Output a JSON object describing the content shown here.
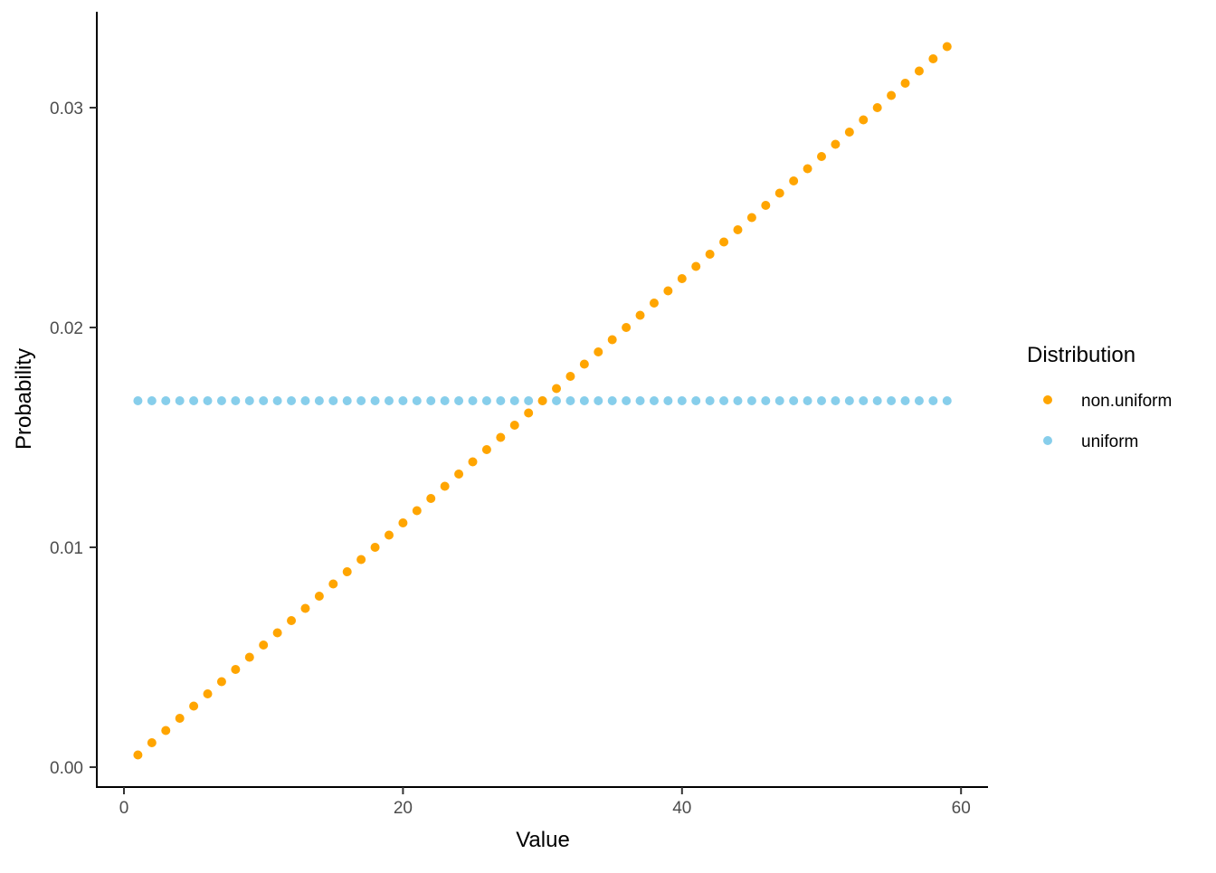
{
  "chart_data": {
    "type": "scatter",
    "title": "",
    "xlabel": "Value",
    "ylabel": "Probability",
    "xlim": [
      0,
      62
    ],
    "ylim": [
      0,
      0.0335
    ],
    "grid": false,
    "theme": "classic",
    "x_tick_values": [
      0,
      20,
      40,
      60
    ],
    "x_tick_labels": [
      "0",
      "20",
      "40",
      "60"
    ],
    "y_tick_values": [
      0,
      0.01,
      0.02,
      0.03
    ],
    "y_tick_labels": [
      "0.00",
      "0.01",
      "0.02",
      "0.03"
    ],
    "x": [
      1,
      2,
      3,
      4,
      5,
      6,
      7,
      8,
      9,
      10,
      11,
      12,
      13,
      14,
      15,
      16,
      17,
      18,
      19,
      20,
      21,
      22,
      23,
      24,
      25,
      26,
      27,
      28,
      29,
      30,
      31,
      32,
      33,
      34,
      35,
      36,
      37,
      38,
      39,
      40,
      41,
      42,
      43,
      44,
      45,
      46,
      47,
      48,
      49,
      50,
      51,
      52,
      53,
      54,
      55,
      56,
      57,
      58,
      59
    ],
    "series": [
      {
        "name": "uniform",
        "color": "#87CEEB",
        "values": [
          0.016667,
          0.016667,
          0.016667,
          0.016667,
          0.016667,
          0.016667,
          0.016667,
          0.016667,
          0.016667,
          0.016667,
          0.016667,
          0.016667,
          0.016667,
          0.016667,
          0.016667,
          0.016667,
          0.016667,
          0.016667,
          0.016667,
          0.016667,
          0.016667,
          0.016667,
          0.016667,
          0.016667,
          0.016667,
          0.016667,
          0.016667,
          0.016667,
          0.016667,
          0.016667,
          0.016667,
          0.016667,
          0.016667,
          0.016667,
          0.016667,
          0.016667,
          0.016667,
          0.016667,
          0.016667,
          0.016667,
          0.016667,
          0.016667,
          0.016667,
          0.016667,
          0.016667,
          0.016667,
          0.016667,
          0.016667,
          0.016667,
          0.016667,
          0.016667,
          0.016667,
          0.016667,
          0.016667,
          0.016667,
          0.016667,
          0.016667,
          0.016667,
          0.016667
        ]
      },
      {
        "name": "non.uniform",
        "color": "#FFA500",
        "values": [
          0.000556,
          0.001111,
          0.001667,
          0.002222,
          0.002778,
          0.003333,
          0.003889,
          0.004444,
          0.005,
          0.005556,
          0.006111,
          0.006667,
          0.007222,
          0.007778,
          0.008333,
          0.008889,
          0.009444,
          0.01,
          0.010556,
          0.011111,
          0.011667,
          0.012222,
          0.012778,
          0.013333,
          0.013889,
          0.014444,
          0.015,
          0.015556,
          0.016111,
          0.016667,
          0.017222,
          0.017778,
          0.018333,
          0.018889,
          0.019444,
          0.02,
          0.020556,
          0.021111,
          0.021667,
          0.022222,
          0.022778,
          0.023333,
          0.023889,
          0.024444,
          0.025,
          0.025556,
          0.026111,
          0.026667,
          0.027222,
          0.027778,
          0.028333,
          0.028889,
          0.029444,
          0.03,
          0.030556,
          0.031111,
          0.031667,
          0.032222,
          0.032778
        ]
      }
    ],
    "legend": {
      "title": "Distribution",
      "position": "right",
      "entries": [
        {
          "label": "non.uniform",
          "color": "#FFA500"
        },
        {
          "label": "uniform",
          "color": "#87CEEB"
        }
      ]
    }
  },
  "colors": {
    "background": "#ffffff",
    "axis_line": "#000000",
    "axis_text": "#4d4d4d",
    "orange": "#FFA500",
    "skyblue": "#87CEEB"
  }
}
